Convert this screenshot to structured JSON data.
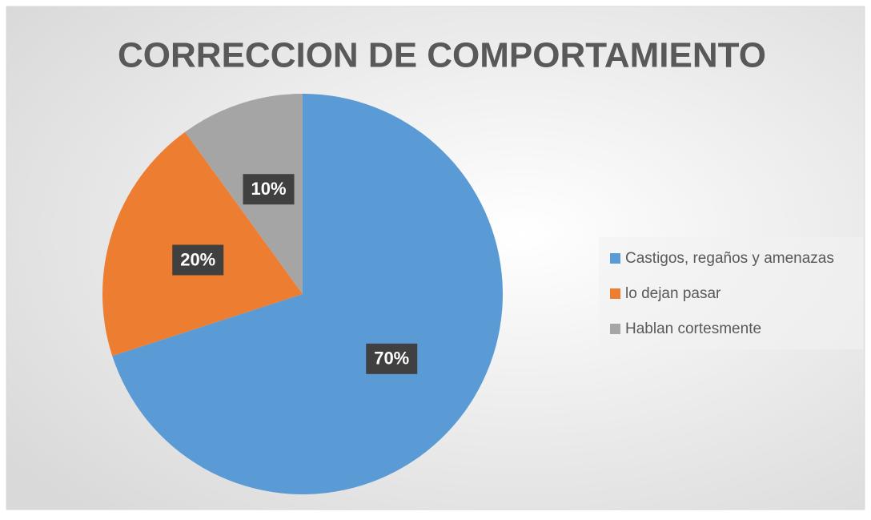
{
  "chart_data": {
    "type": "pie",
    "title": "CORRECCION DE COMPORTAMIENTO",
    "categories": [
      "Castigos, regaños y amenazas",
      "lo dejan pasar",
      "Hablan cortesmente"
    ],
    "values": [
      70,
      20,
      10
    ],
    "value_labels": [
      "70%",
      "20%",
      "10%"
    ],
    "colors": [
      "#5b9bd5",
      "#ed7d31",
      "#a5a5a5"
    ],
    "legend": "right"
  }
}
